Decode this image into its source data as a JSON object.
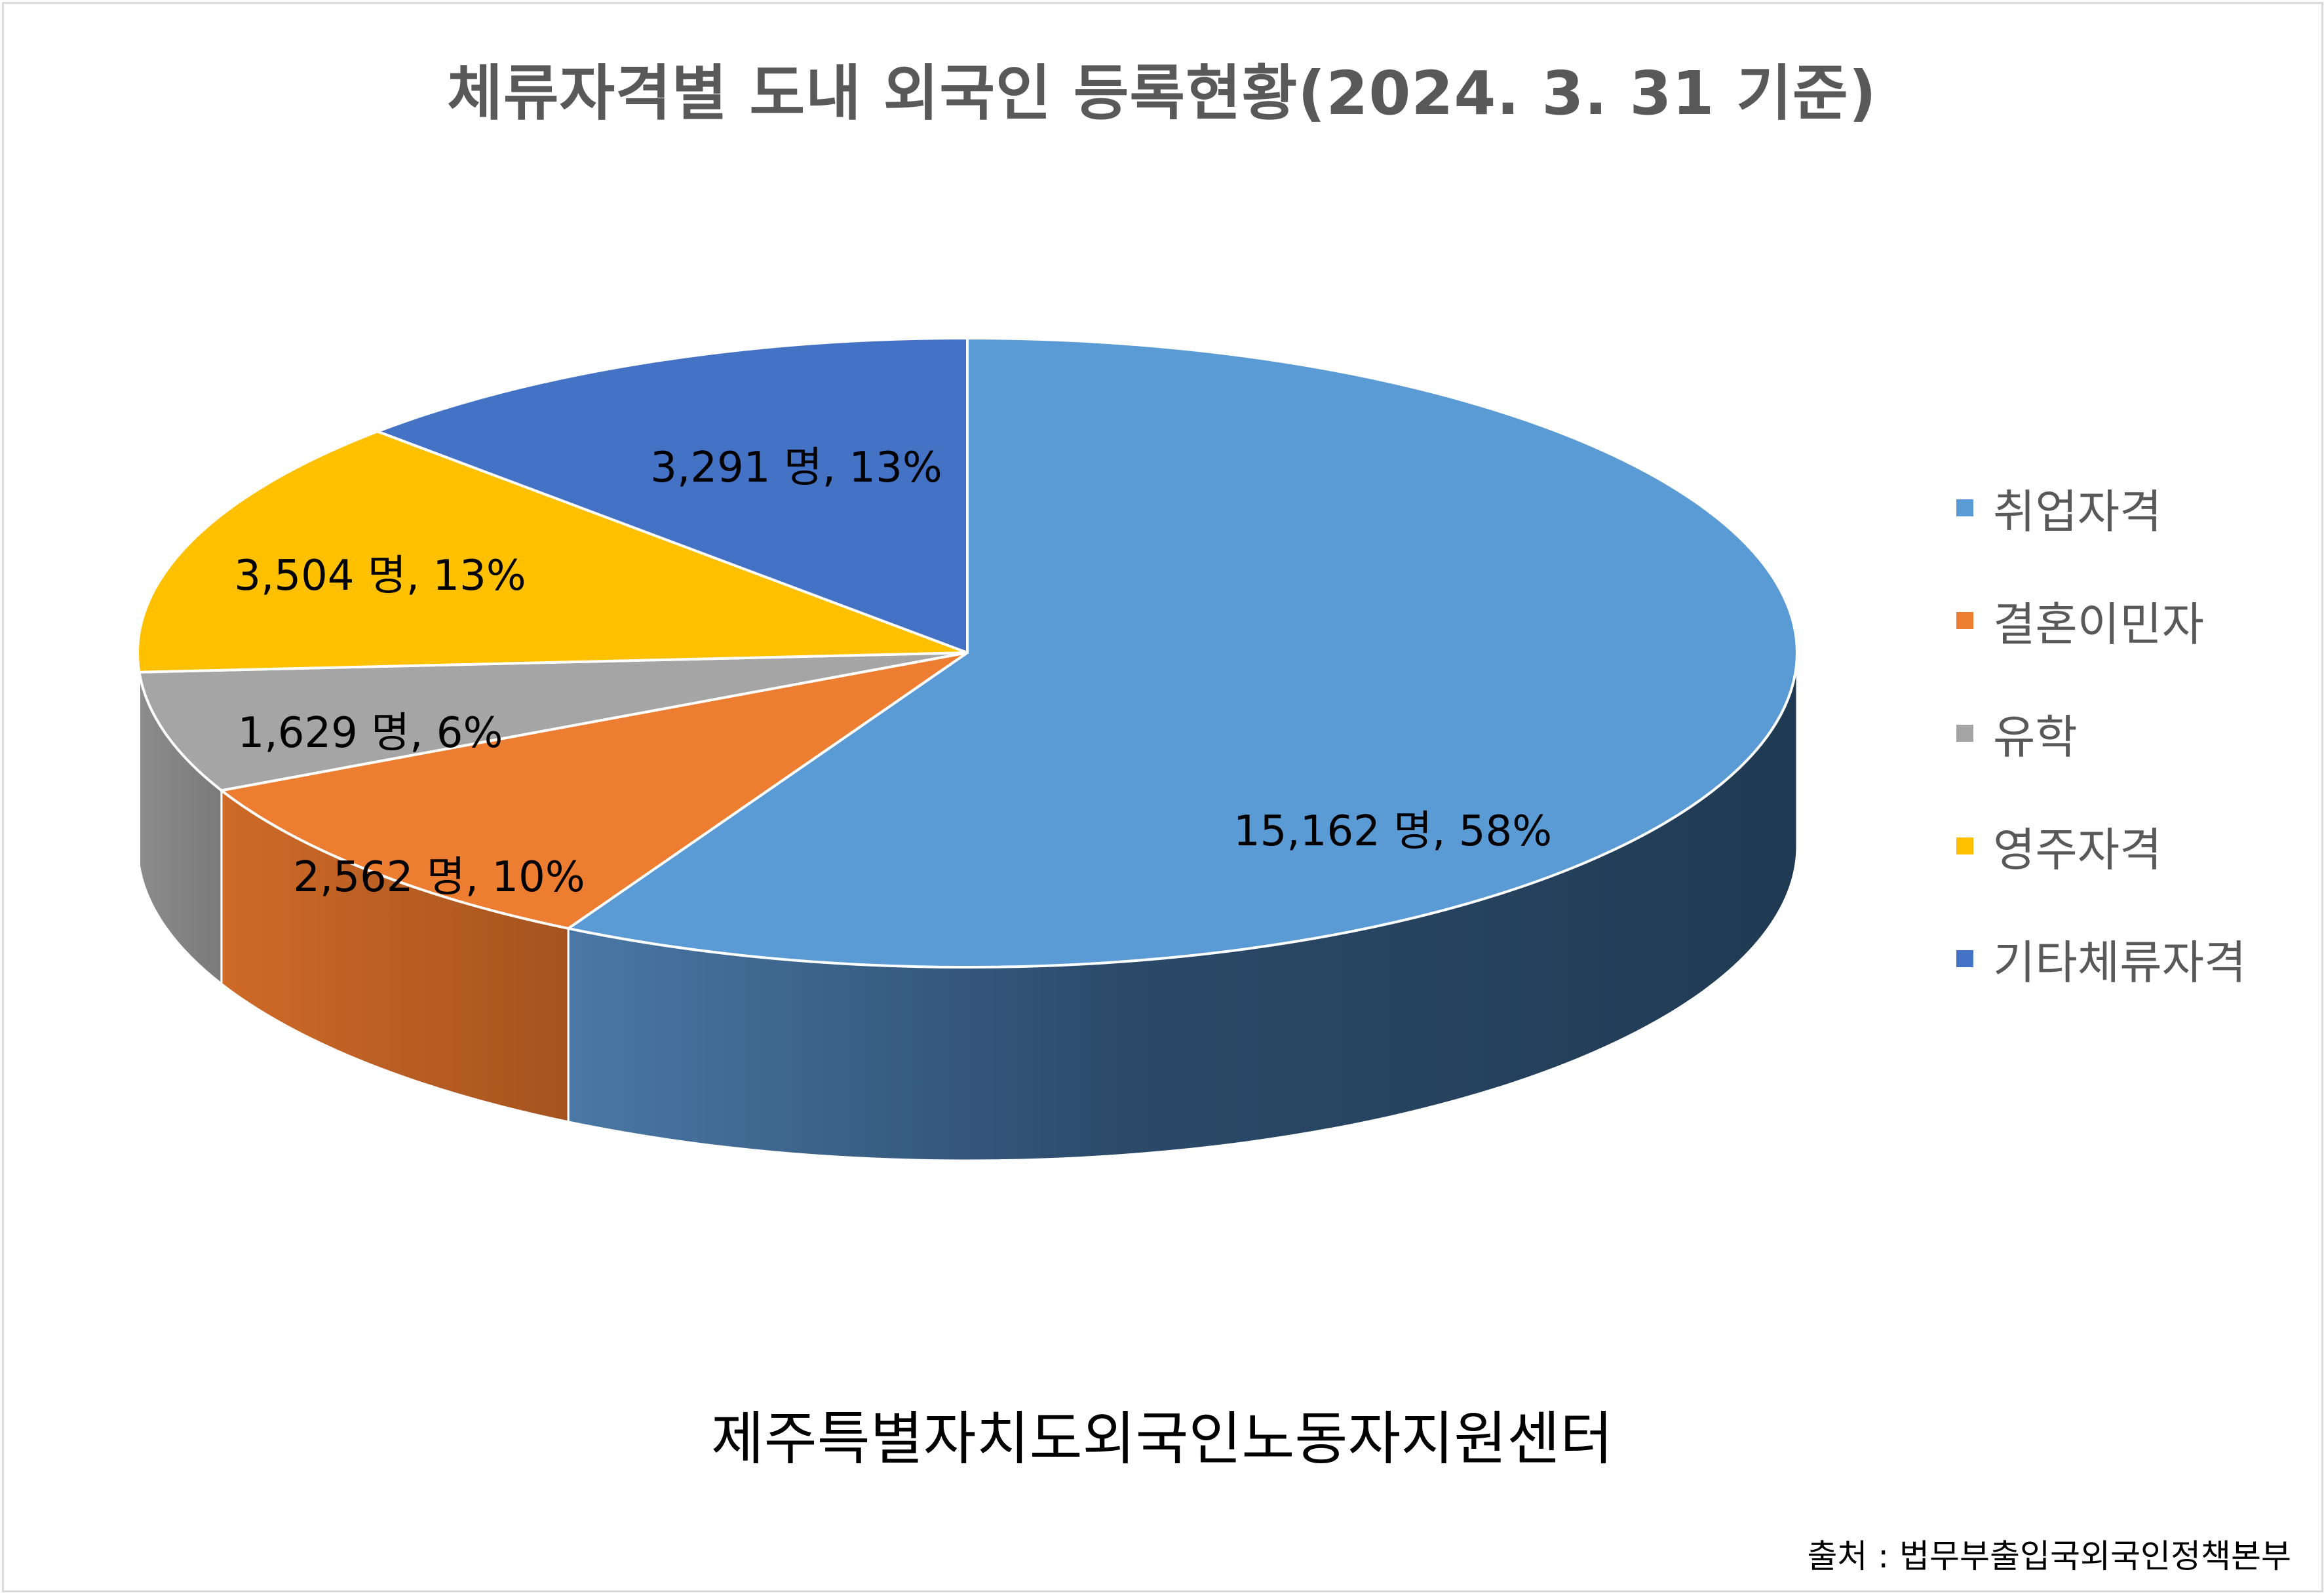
{
  "chart_data": {
    "type": "pie",
    "style": "3d",
    "title": "체류자격별 도내 외국인 등록현황(2024. 3. 31 기준)",
    "unit": "명",
    "slices": [
      {
        "name": "취업자격",
        "value": 15162,
        "percent": 58,
        "label": "15,162 명, 58%",
        "color": "#5b9bd5"
      },
      {
        "name": "결혼이민자",
        "value": 2562,
        "percent": 10,
        "label": "2,562 명, 10%",
        "color": "#ed7d31"
      },
      {
        "name": "유학",
        "value": 1629,
        "percent": 6,
        "label": "1,629 명, 6%",
        "color": "#a5a5a5"
      },
      {
        "name": "영주자격",
        "value": 3504,
        "percent": 13,
        "label": "3,504 명, 13%",
        "color": "#ffc000"
      },
      {
        "name": "기타체류자격",
        "value": 3291,
        "percent": 13,
        "label": "3,291 명, 13%",
        "color": "#4472c4"
      }
    ],
    "legend_position": "right"
  },
  "footer": {
    "organization": "제주특별자치도외국인노동자지원센터",
    "source": "출처 : 법무부출입국외국인정책본부"
  }
}
